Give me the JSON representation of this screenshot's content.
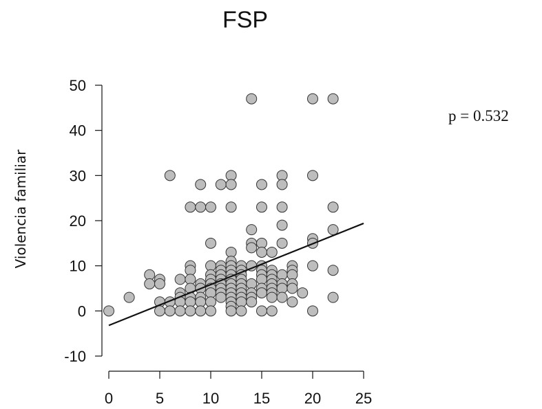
{
  "chart_data": {
    "type": "scatter",
    "title": "FSP",
    "xlabel": "",
    "ylabel": "Violencia familiar",
    "annotation": "p = 0.532",
    "xlim": [
      0,
      25
    ],
    "ylim": [
      -10,
      50
    ],
    "x_ticks": [
      "0",
      "5",
      "10",
      "15",
      "20",
      "25"
    ],
    "y_ticks": [
      "-10",
      "0",
      "10",
      "20",
      "30",
      "40",
      "50"
    ],
    "grid": false,
    "point_color": "#bdbdbd",
    "point_edge": "#333333",
    "line_color": "#111111",
    "regression_line": {
      "x": [
        0,
        25
      ],
      "y": [
        -3.2,
        19.4
      ]
    },
    "points": [
      [
        0,
        0
      ],
      [
        2,
        3
      ],
      [
        4,
        8
      ],
      [
        4,
        6
      ],
      [
        5,
        7
      ],
      [
        5,
        6
      ],
      [
        5,
        2
      ],
      [
        5,
        0
      ],
      [
        6,
        30
      ],
      [
        6,
        2
      ],
      [
        6,
        0
      ],
      [
        7,
        7
      ],
      [
        7,
        4
      ],
      [
        7,
        3
      ],
      [
        7,
        2
      ],
      [
        7,
        0
      ],
      [
        8,
        23
      ],
      [
        8,
        10
      ],
      [
        8,
        9
      ],
      [
        8,
        7
      ],
      [
        8,
        5
      ],
      [
        8,
        3
      ],
      [
        8,
        2
      ],
      [
        8,
        0
      ],
      [
        9,
        28
      ],
      [
        9,
        23
      ],
      [
        9,
        6
      ],
      [
        9,
        5
      ],
      [
        9,
        3
      ],
      [
        9,
        2
      ],
      [
        9,
        0
      ],
      [
        10,
        23
      ],
      [
        10,
        15
      ],
      [
        10,
        10
      ],
      [
        10,
        8
      ],
      [
        10,
        7
      ],
      [
        10,
        6
      ],
      [
        10,
        5
      ],
      [
        10,
        4
      ],
      [
        10,
        2
      ],
      [
        10,
        0
      ],
      [
        11,
        28
      ],
      [
        11,
        10
      ],
      [
        11,
        9
      ],
      [
        11,
        8
      ],
      [
        11,
        7
      ],
      [
        11,
        6
      ],
      [
        11,
        5
      ],
      [
        11,
        4
      ],
      [
        11,
        3
      ],
      [
        12,
        30
      ],
      [
        12,
        28
      ],
      [
        12,
        23
      ],
      [
        12,
        13
      ],
      [
        12,
        11
      ],
      [
        12,
        10
      ],
      [
        12,
        9
      ],
      [
        12,
        8
      ],
      [
        12,
        7
      ],
      [
        12,
        6
      ],
      [
        12,
        5
      ],
      [
        12,
        4
      ],
      [
        12,
        3
      ],
      [
        12,
        2
      ],
      [
        12,
        1
      ],
      [
        12,
        0
      ],
      [
        13,
        10
      ],
      [
        13,
        9
      ],
      [
        13,
        8
      ],
      [
        13,
        7
      ],
      [
        13,
        6
      ],
      [
        13,
        5
      ],
      [
        13,
        4
      ],
      [
        13,
        3
      ],
      [
        13,
        2
      ],
      [
        13,
        0
      ],
      [
        14,
        47
      ],
      [
        14,
        18
      ],
      [
        14,
        15
      ],
      [
        14,
        14
      ],
      [
        14,
        10
      ],
      [
        14,
        6
      ],
      [
        14,
        4
      ],
      [
        14,
        3
      ],
      [
        14,
        2
      ],
      [
        15,
        28
      ],
      [
        15,
        23
      ],
      [
        15,
        15
      ],
      [
        15,
        13
      ],
      [
        15,
        10
      ],
      [
        15,
        9
      ],
      [
        15,
        8
      ],
      [
        15,
        7
      ],
      [
        15,
        5
      ],
      [
        15,
        4
      ],
      [
        15,
        0
      ],
      [
        16,
        13
      ],
      [
        16,
        9
      ],
      [
        16,
        8
      ],
      [
        16,
        7
      ],
      [
        16,
        6
      ],
      [
        16,
        5
      ],
      [
        16,
        4
      ],
      [
        16,
        3
      ],
      [
        16,
        0
      ],
      [
        17,
        30
      ],
      [
        17,
        28
      ],
      [
        17,
        23
      ],
      [
        17,
        19
      ],
      [
        17,
        15
      ],
      [
        17,
        8
      ],
      [
        17,
        6
      ],
      [
        17,
        5
      ],
      [
        17,
        3
      ],
      [
        18,
        10
      ],
      [
        18,
        9
      ],
      [
        18,
        8
      ],
      [
        18,
        6
      ],
      [
        18,
        5
      ],
      [
        18,
        2
      ],
      [
        19,
        4
      ],
      [
        20,
        47
      ],
      [
        20,
        30
      ],
      [
        20,
        16
      ],
      [
        20,
        15
      ],
      [
        20,
        10
      ],
      [
        20,
        0
      ],
      [
        22,
        47
      ],
      [
        22,
        23
      ],
      [
        22,
        18
      ],
      [
        22,
        9
      ],
      [
        22,
        3
      ]
    ]
  }
}
